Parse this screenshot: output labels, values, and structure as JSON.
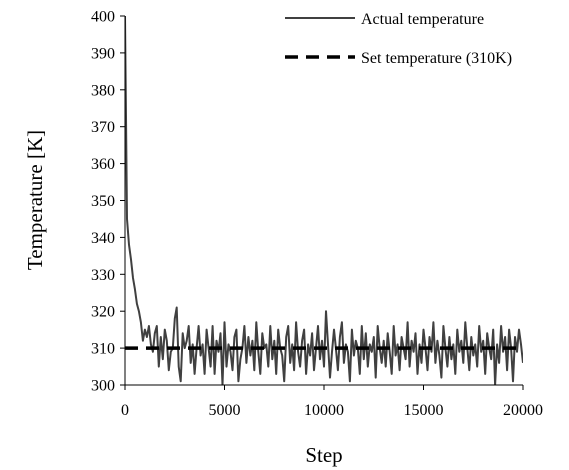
{
  "chart_data": {
    "type": "line",
    "xlabel": "Step",
    "ylabel": "Temperature [K]",
    "xlim": [
      0,
      20000
    ],
    "ylim": [
      300,
      400
    ],
    "x_ticks": [
      0,
      5000,
      10000,
      15000,
      20000
    ],
    "y_ticks": [
      300,
      310,
      320,
      330,
      340,
      350,
      360,
      370,
      380,
      390,
      400
    ],
    "grid": false,
    "legend_position": "top-right",
    "series": [
      {
        "name": "Actual temperature",
        "style": "solid",
        "color": "#404040",
        "x": [
          0,
          100,
          200,
          300,
          400,
          500,
          600,
          700,
          800,
          900,
          1000,
          1100,
          1200,
          1300,
          1400,
          1500,
          1600,
          1700,
          1800,
          1900,
          2000,
          2100,
          2200,
          2300,
          2400,
          2500,
          2600,
          2700,
          2800,
          2900,
          3000,
          3100,
          3200,
          3300,
          3400,
          3500,
          3600,
          3700,
          3800,
          3900,
          4000,
          4100,
          4200,
          4300,
          4400,
          4500,
          4600,
          4700,
          4800,
          4900,
          5000,
          5100,
          5200,
          5300,
          5400,
          5500,
          5600,
          5700,
          5800,
          5900,
          6000,
          6100,
          6200,
          6300,
          6400,
          6500,
          6600,
          6700,
          6800,
          6900,
          7000,
          7100,
          7200,
          7300,
          7400,
          7500,
          7600,
          7700,
          7800,
          7900,
          8000,
          8100,
          8200,
          8300,
          8400,
          8500,
          8600,
          8700,
          8800,
          8900,
          9000,
          9100,
          9200,
          9300,
          9400,
          9500,
          9600,
          9700,
          9800,
          9900,
          10000,
          10100,
          10200,
          10300,
          10400,
          10500,
          10600,
          10700,
          10800,
          10900,
          11000,
          11100,
          11200,
          11300,
          11400,
          11500,
          11600,
          11700,
          11800,
          11900,
          12000,
          12100,
          12200,
          12300,
          12400,
          12500,
          12600,
          12700,
          12800,
          12900,
          13000,
          13100,
          13200,
          13300,
          13400,
          13500,
          13600,
          13700,
          13800,
          13900,
          14000,
          14100,
          14200,
          14300,
          14400,
          14500,
          14600,
          14700,
          14800,
          14900,
          15000,
          15100,
          15200,
          15300,
          15400,
          15500,
          15600,
          15700,
          15800,
          15900,
          16000,
          16100,
          16200,
          16300,
          16400,
          16500,
          16600,
          16700,
          16800,
          16900,
          17000,
          17100,
          17200,
          17300,
          17400,
          17500,
          17600,
          17700,
          17800,
          17900,
          18000,
          18100,
          18200,
          18300,
          18400,
          18500,
          18600,
          18700,
          18800,
          18900,
          19000,
          19100,
          19200,
          19300,
          19400,
          19500,
          19600,
          19700,
          19800,
          19900,
          20000
        ],
        "y": [
          400,
          345,
          338,
          334,
          329,
          326,
          322,
          320,
          317,
          312,
          315,
          313,
          316,
          311,
          309,
          314,
          316,
          305,
          313,
          307,
          315,
          312,
          304,
          309,
          310,
          318,
          321,
          305,
          301,
          314,
          310,
          312,
          316,
          306,
          311,
          303,
          310,
          316,
          308,
          311,
          303,
          315,
          310,
          305,
          316,
          303,
          312,
          309,
          314,
          300,
          317,
          305,
          311,
          309,
          304,
          313,
          315,
          301,
          307,
          310,
          316,
          306,
          313,
          308,
          312,
          304,
          317,
          309,
          303,
          314,
          310,
          311,
          305,
          316,
          307,
          312,
          303,
          315,
          310,
          308,
          301,
          313,
          316,
          306,
          311,
          304,
          317,
          309,
          305,
          312,
          315,
          303,
          311,
          308,
          314,
          304,
          310,
          316,
          307,
          312,
          305,
          320,
          311,
          302,
          309,
          315,
          310,
          304,
          313,
          317,
          306,
          311,
          309,
          301,
          315,
          308,
          312,
          310,
          303,
          316,
          307,
          314,
          305,
          311,
          309,
          313,
          302,
          316,
          310,
          306,
          312,
          305,
          314,
          309,
          303,
          316,
          308,
          311,
          304,
          313,
          310,
          307,
          317,
          305,
          312,
          309,
          314,
          303,
          311,
          306,
          315,
          310,
          304,
          313,
          309,
          317,
          306,
          312,
          308,
          302,
          316,
          310,
          305,
          313,
          307,
          311,
          303,
          315,
          309,
          312,
          306,
          317,
          310,
          304,
          313,
          308,
          311,
          305,
          316,
          309,
          312,
          303,
          314,
          310,
          307,
          315,
          300,
          311,
          306,
          316,
          309,
          313,
          304,
          315,
          310,
          301,
          313,
          309,
          315,
          311,
          306
        ]
      },
      {
        "name": "Set temperature (310K)",
        "style": "dashed",
        "color": "#000000",
        "x": [
          0,
          20000
        ],
        "y": [
          310,
          310
        ]
      }
    ]
  }
}
